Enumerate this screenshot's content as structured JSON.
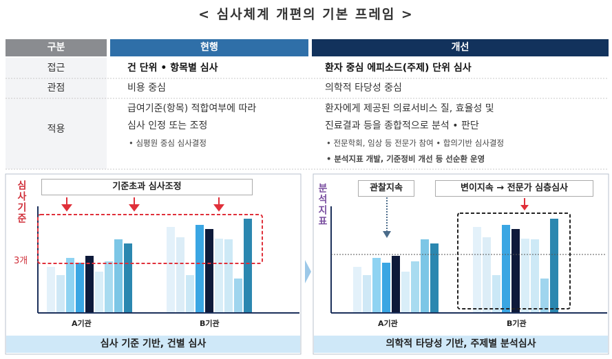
{
  "title": "< 심사체계 개편의 기본 프레임 >",
  "table": {
    "headers": [
      "구분",
      "현행",
      "개선"
    ],
    "rows": [
      {
        "label": "접근",
        "current": [
          "건 단위 • 항목별 심사"
        ],
        "improved": [
          "환자 중심 에피소드(주제) 단위 심사"
        ]
      },
      {
        "label": "관점",
        "current": [
          "비용 중심"
        ],
        "improved": [
          "의학적 타당성 중심"
        ]
      },
      {
        "label": "적용",
        "current": [
          "급여기준(항목) 적합여부에 따라",
          "심사 인정 또는 조정",
          "• 심평원 중심 심사결정"
        ],
        "improved": [
          "환자에게 제공된 의료서비스 질, 효율성 및",
          "진료결과 등을 종합적으로 분석 • 판단",
          "• 전문학회, 임상 등 전문가 참여 • 합의기반 심사결정",
          "• 분석지표 개발, 기준정비 개선 등 선순환 운영"
        ]
      }
    ]
  },
  "panels": {
    "current": {
      "axis_label": "심사기준",
      "threshold_label": "3개",
      "callout": "기준초과 심사조정",
      "groups": [
        "A기관",
        "B기관"
      ],
      "caption": "심사 기준 기반, 건별 심사"
    },
    "improved": {
      "axis_label": "분석지표",
      "callout_left": "관찰지속",
      "callout_right": "변이지속 → 전문가 심층심사",
      "groups": [
        "A기관",
        "B기관"
      ],
      "caption": "의학적 타당성 기반, 주제별 분석심사"
    }
  }
}
